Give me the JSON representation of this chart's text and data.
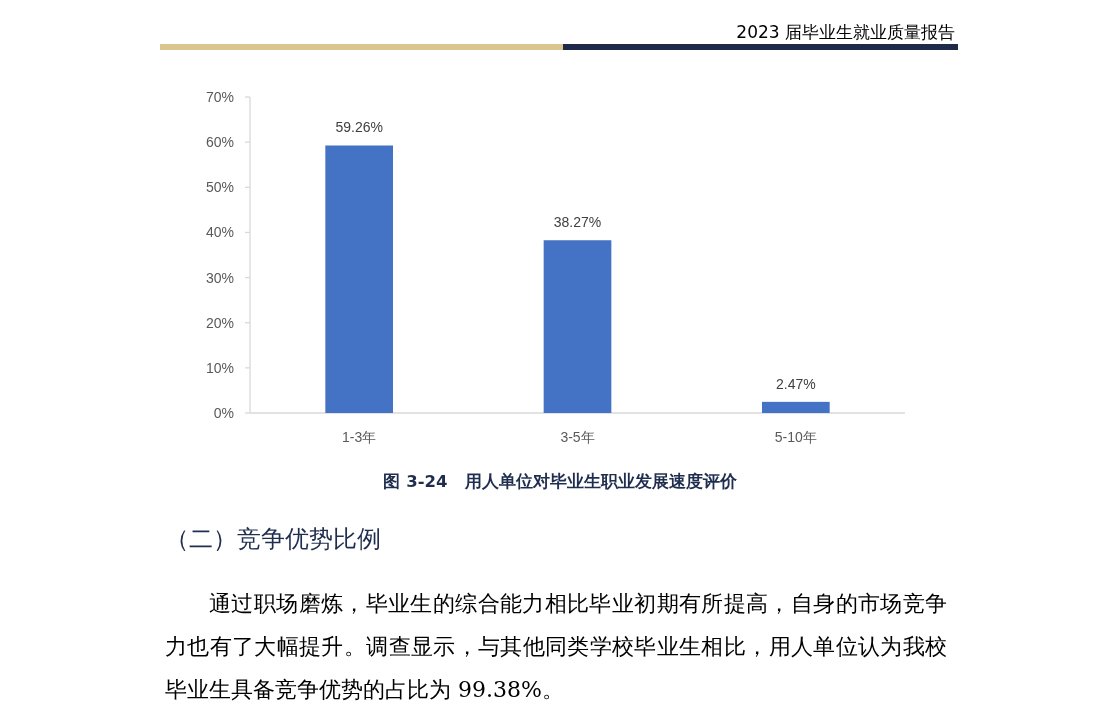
{
  "chart_data": {
    "type": "bar",
    "title": "图 3-24　用人单位对毕业生职业发展速度评价",
    "categories": [
      "1-3年",
      "3-5年",
      "5-10年"
    ],
    "values": [
      59.26,
      38.27,
      2.47
    ],
    "color": "#4472c4",
    "value_labels": [
      "59.26%",
      "38.27%",
      "2.47%"
    ],
    "ylim": [
      0,
      70
    ],
    "yticks": [
      {
        "value": 0,
        "label": "0%"
      },
      {
        "value": 10,
        "label": "10%"
      },
      {
        "value": 20,
        "label": "20%"
      },
      {
        "value": 30,
        "label": "30%"
      },
      {
        "value": 40,
        "label": "40%"
      },
      {
        "value": 50,
        "label": "50%"
      },
      {
        "value": 60,
        "label": "60%"
      },
      {
        "value": 70,
        "label": "70%"
      }
    ],
    "annotations": [
      "2023 届毕业生就业质量报告",
      "（二）竞争优势比例",
      "通过职场磨炼，毕业生的综合能力相比毕业初期有所提高，自身的市场竞争力也有了大幅提升。调查显示，与其他同类学校毕业生相比，用人单位认为我校毕业生具备竞争优势的占比为 99.38%。"
    ]
  }
}
